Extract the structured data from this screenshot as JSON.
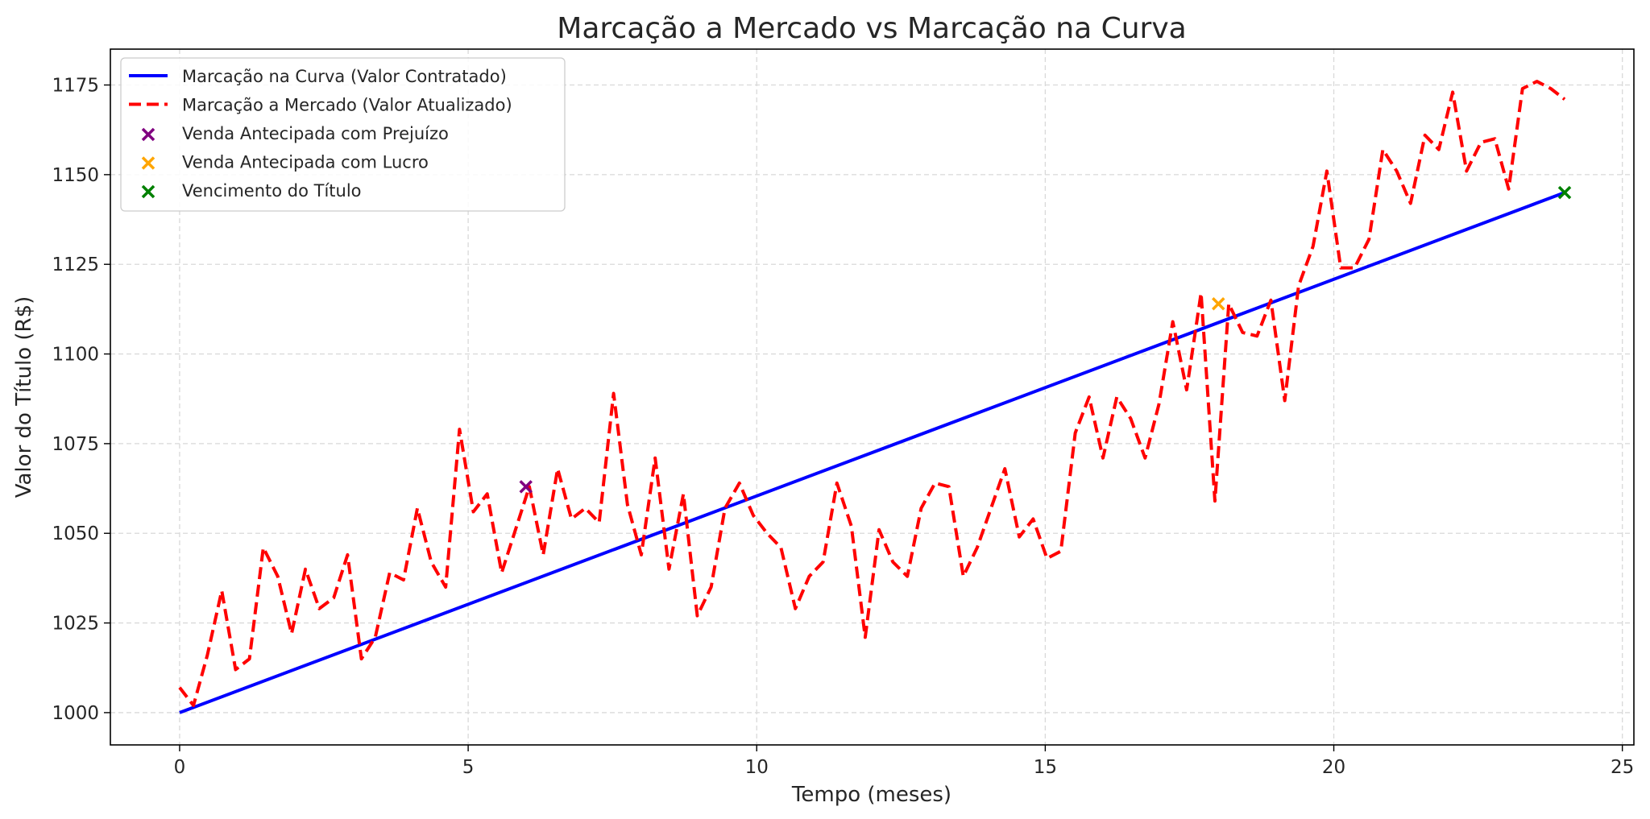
{
  "chart_data": {
    "type": "line",
    "title": "Marcação a Mercado vs Marcação na Curva",
    "xlabel": "Tempo (meses)",
    "ylabel": "Valor do Título (R$)",
    "xlim": [
      -1.2,
      25.2
    ],
    "ylim": [
      991,
      1185
    ],
    "xticks": [
      0,
      5,
      10,
      15,
      20,
      25
    ],
    "yticks": [
      1000,
      1025,
      1050,
      1075,
      1100,
      1125,
      1150,
      1175
    ],
    "grid": true,
    "legend_position": "top-left",
    "series": [
      {
        "name": "Marcação na Curva (Valor Contratado)",
        "style": "solid",
        "color": "#0000ff",
        "x": [
          0,
          24
        ],
        "y": [
          1000,
          1145
        ]
      },
      {
        "name": "Marcação a Mercado (Valor Atualizado)",
        "style": "dashed",
        "color": "#ff0000",
        "x": [
          0,
          0.24,
          0.48,
          0.73,
          0.97,
          1.21,
          1.45,
          1.7,
          1.94,
          2.18,
          2.42,
          2.67,
          2.91,
          3.15,
          3.39,
          3.64,
          3.88,
          4.12,
          4.36,
          4.61,
          4.85,
          5.09,
          5.33,
          5.58,
          5.82,
          6.06,
          6.3,
          6.55,
          6.79,
          7.03,
          7.27,
          7.52,
          7.76,
          8.0,
          8.24,
          8.48,
          8.73,
          8.97,
          9.21,
          9.45,
          9.7,
          9.94,
          10.18,
          10.42,
          10.67,
          10.91,
          11.15,
          11.39,
          11.64,
          11.88,
          12.12,
          12.36,
          12.61,
          12.85,
          13.09,
          13.33,
          13.58,
          13.82,
          14.06,
          14.3,
          14.55,
          14.79,
          15.03,
          15.27,
          15.52,
          15.76,
          16.0,
          16.24,
          16.48,
          16.73,
          16.97,
          17.21,
          17.45,
          17.7,
          17.94,
          18.18,
          18.42,
          18.67,
          18.91,
          19.15,
          19.39,
          19.64,
          19.88,
          20.12,
          20.36,
          20.61,
          20.85,
          21.09,
          21.33,
          21.58,
          21.82,
          22.06,
          22.3,
          22.55,
          22.79,
          23.03,
          23.27,
          23.52,
          23.76,
          24.0
        ],
        "y": [
          1007,
          1002,
          1016,
          1034,
          1012,
          1015,
          1046,
          1038,
          1022,
          1040,
          1029,
          1032,
          1044,
          1015,
          1021,
          1039,
          1037,
          1057,
          1042,
          1035,
          1079,
          1056,
          1061,
          1039,
          1051,
          1063,
          1044,
          1068,
          1054,
          1057,
          1053,
          1089,
          1058,
          1044,
          1071,
          1040,
          1061,
          1027,
          1035,
          1057,
          1064,
          1055,
          1050,
          1046,
          1029,
          1038,
          1042,
          1064,
          1052,
          1021,
          1051,
          1042,
          1038,
          1057,
          1064,
          1063,
          1038,
          1046,
          1057,
          1068,
          1049,
          1054,
          1043,
          1045,
          1078,
          1088,
          1071,
          1088,
          1082,
          1071,
          1086,
          1109,
          1090,
          1117,
          1059,
          1114,
          1106,
          1105,
          1115,
          1087,
          1119,
          1130,
          1151,
          1124,
          1124,
          1132,
          1157,
          1151,
          1142,
          1161,
          1157,
          1173,
          1151,
          1159,
          1160,
          1146,
          1174,
          1176,
          1174,
          1171
        ]
      }
    ],
    "markers": [
      {
        "name": "Venda Antecipada com Prejuízo",
        "x": 6,
        "y": 1063,
        "color": "#800080",
        "symbol": "x"
      },
      {
        "name": "Venda Antecipada com Lucro",
        "x": 18,
        "y": 1114,
        "color": "#ffa500",
        "symbol": "x"
      },
      {
        "name": "Vencimento do Título",
        "x": 24,
        "y": 1145,
        "color": "#008000",
        "symbol": "x"
      }
    ]
  }
}
